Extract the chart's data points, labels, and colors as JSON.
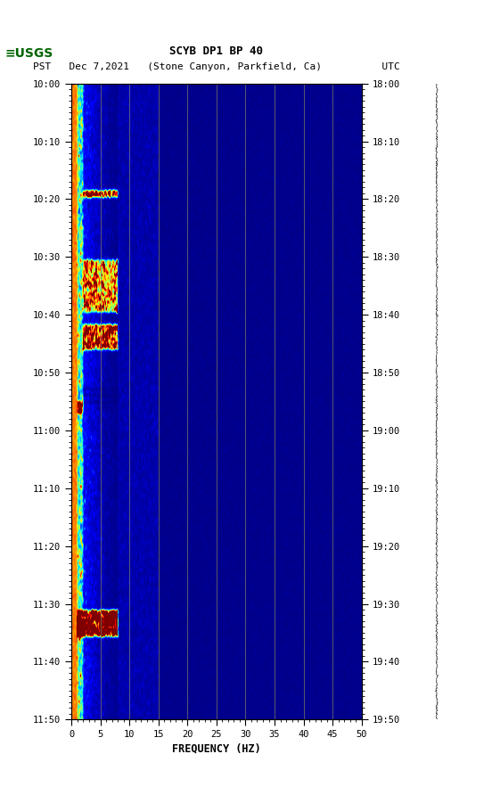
{
  "title_line1": "SCYB DP1 BP 40",
  "title_line2": "PST   Dec 7,2021   (Stone Canyon, Parkfield, Ca)          UTC",
  "xlabel": "FREQUENCY (HZ)",
  "freq_min": 0,
  "freq_max": 50,
  "left_time_labels": [
    "10:00",
    "10:10",
    "10:20",
    "10:30",
    "10:40",
    "10:50",
    "11:00",
    "11:10",
    "11:20",
    "11:30",
    "11:40",
    "11:50"
  ],
  "right_time_labels": [
    "18:00",
    "18:10",
    "18:20",
    "18:30",
    "18:40",
    "18:50",
    "19:00",
    "19:10",
    "19:20",
    "19:30",
    "19:40",
    "19:50"
  ],
  "freq_ticks": [
    0,
    5,
    10,
    15,
    20,
    25,
    30,
    35,
    40,
    45,
    50
  ],
  "vert_gridlines": [
    5,
    10,
    15,
    20,
    25,
    30,
    35,
    40,
    45
  ],
  "colormap": "jet",
  "fig_bg": "#ffffff",
  "fig_width": 5.52,
  "fig_height": 8.92,
  "usgs_color": "#006400",
  "seismo_color": "#000000",
  "grid_color": "#808060"
}
